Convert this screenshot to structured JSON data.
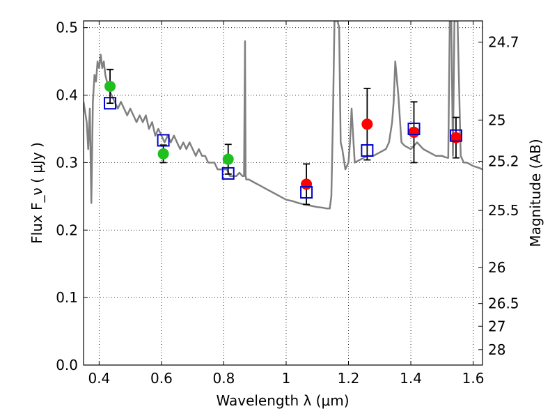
{
  "chart_data": {
    "type": "scatter",
    "xlabel": "Wavelength  λ (μm)",
    "ylabel": "Flux  F_ν  ( μJy )",
    "y2label": "Magnitude (AB)",
    "xlim": [
      0.35,
      1.63
    ],
    "ylim": [
      0.0,
      0.51
    ],
    "xticks": [
      0.4,
      0.6,
      0.8,
      1.0,
      1.2,
      1.4,
      1.6
    ],
    "xtick_labels": [
      "0.4",
      "0.6",
      "0.8",
      "1",
      "1.2",
      "1.4",
      "1.6"
    ],
    "yticks": [
      0.0,
      0.1,
      0.2,
      0.3,
      0.4,
      0.5
    ],
    "ytick_labels": [
      "0.0",
      "0.1",
      "0.2",
      "0.3",
      "0.4",
      "0.5"
    ],
    "mag_ticks": [
      24.7,
      25,
      25.2,
      25.5,
      26,
      26.5,
      27,
      28
    ],
    "mag_tick_labels": [
      "24.7",
      "25",
      "25.2",
      "25.5",
      "26",
      "26.5",
      "27",
      "28"
    ],
    "grid": true,
    "colors": {
      "template": "#808080",
      "green": "#1fbf1f",
      "red": "#ff0000",
      "model_box": "#0000cc",
      "errorbar": "#000000"
    },
    "series": [
      {
        "kind": "template_spectrum",
        "x": [
          0.35,
          0.36,
          0.365,
          0.37,
          0.375,
          0.38,
          0.385,
          0.39,
          0.395,
          0.4,
          0.405,
          0.41,
          0.415,
          0.42,
          0.43,
          0.44,
          0.45,
          0.46,
          0.47,
          0.48,
          0.49,
          0.5,
          0.51,
          0.52,
          0.53,
          0.54,
          0.55,
          0.56,
          0.57,
          0.58,
          0.59,
          0.6,
          0.61,
          0.62,
          0.63,
          0.64,
          0.65,
          0.66,
          0.67,
          0.68,
          0.69,
          0.7,
          0.71,
          0.72,
          0.73,
          0.74,
          0.75,
          0.76,
          0.77,
          0.78,
          0.79,
          0.8,
          0.81,
          0.82,
          0.83,
          0.84,
          0.85,
          0.86,
          0.865,
          0.868,
          0.87,
          0.872,
          0.875,
          0.88,
          0.9,
          0.92,
          0.94,
          0.96,
          0.98,
          1.0,
          1.02,
          1.04,
          1.06,
          1.08,
          1.1,
          1.12,
          1.13,
          1.14,
          1.145,
          1.15,
          1.155,
          1.16,
          1.165,
          1.17,
          1.175,
          1.18,
          1.19,
          1.2,
          1.205,
          1.21,
          1.215,
          1.22,
          1.24,
          1.26,
          1.28,
          1.3,
          1.32,
          1.33,
          1.34,
          1.345,
          1.35,
          1.36,
          1.37,
          1.38,
          1.4,
          1.42,
          1.44,
          1.46,
          1.48,
          1.5,
          1.51,
          1.52,
          1.525,
          1.53,
          1.535,
          1.54,
          1.545,
          1.55,
          1.56,
          1.57,
          1.58,
          1.6,
          1.62,
          1.63
        ],
        "y": [
          0.39,
          0.36,
          0.32,
          0.38,
          0.24,
          0.39,
          0.43,
          0.42,
          0.45,
          0.44,
          0.46,
          0.44,
          0.45,
          0.43,
          0.41,
          0.4,
          0.39,
          0.38,
          0.39,
          0.38,
          0.37,
          0.38,
          0.37,
          0.36,
          0.37,
          0.36,
          0.37,
          0.35,
          0.36,
          0.34,
          0.35,
          0.34,
          0.33,
          0.34,
          0.33,
          0.34,
          0.33,
          0.32,
          0.33,
          0.32,
          0.33,
          0.32,
          0.31,
          0.32,
          0.31,
          0.31,
          0.3,
          0.3,
          0.3,
          0.29,
          0.29,
          0.29,
          0.29,
          0.28,
          0.28,
          0.28,
          0.285,
          0.28,
          0.28,
          0.48,
          0.28,
          0.275,
          0.275,
          0.275,
          0.27,
          0.265,
          0.26,
          0.255,
          0.25,
          0.245,
          0.243,
          0.24,
          0.238,
          0.236,
          0.234,
          0.233,
          0.232,
          0.232,
          0.25,
          0.36,
          0.51,
          0.51,
          0.51,
          0.5,
          0.33,
          0.32,
          0.29,
          0.3,
          0.33,
          0.38,
          0.34,
          0.3,
          0.305,
          0.31,
          0.31,
          0.315,
          0.32,
          0.33,
          0.36,
          0.39,
          0.45,
          0.4,
          0.33,
          0.325,
          0.32,
          0.33,
          0.32,
          0.315,
          0.31,
          0.31,
          0.308,
          0.307,
          0.51,
          0.51,
          0.31,
          0.51,
          0.51,
          0.51,
          0.31,
          0.3,
          0.3,
          0.295,
          0.292,
          0.29
        ]
      },
      {
        "kind": "observed_flux",
        "color": "green",
        "points": [
          {
            "x": 0.435,
            "y": 0.413,
            "yerr": 0.025
          },
          {
            "x": 0.606,
            "y": 0.313,
            "yerr": 0.013
          },
          {
            "x": 0.814,
            "y": 0.305,
            "yerr": 0.022
          }
        ]
      },
      {
        "kind": "observed_flux",
        "color": "red",
        "points": [
          {
            "x": 1.065,
            "y": 0.268,
            "yerr": 0.03
          },
          {
            "x": 1.26,
            "y": 0.357,
            "yerr": 0.053
          },
          {
            "x": 1.41,
            "y": 0.345,
            "yerr": 0.045
          },
          {
            "x": 1.545,
            "y": 0.337,
            "yerr": 0.03
          }
        ]
      },
      {
        "kind": "model_flux",
        "color": "model_box",
        "points": [
          {
            "x": 0.435,
            "y": 0.388
          },
          {
            "x": 0.606,
            "y": 0.333
          },
          {
            "x": 0.814,
            "y": 0.284
          },
          {
            "x": 1.065,
            "y": 0.256
          },
          {
            "x": 1.26,
            "y": 0.318
          },
          {
            "x": 1.41,
            "y": 0.35
          },
          {
            "x": 1.545,
            "y": 0.34
          }
        ]
      }
    ]
  }
}
